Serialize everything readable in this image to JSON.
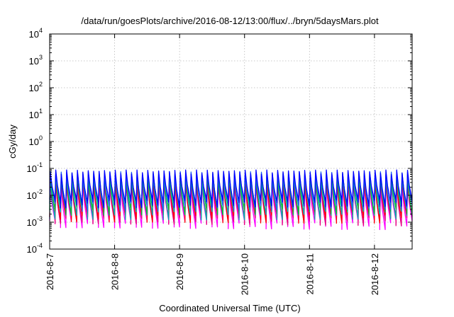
{
  "chart_data": {
    "type": "line",
    "title": "/data/run/goesPlots/archive/2016-08-12/13:00/flux/../bryn/5daysMars.plot",
    "xlabel": "Coordinated Universal Time (UTC)",
    "ylabel": "cGy/day",
    "yscale": "log",
    "ylim": [
      0.0001,
      10000
    ],
    "y_ticks": [
      {
        "base": "10",
        "exp": "-4",
        "value": 0.0001
      },
      {
        "base": "10",
        "exp": "-3",
        "value": 0.001
      },
      {
        "base": "10",
        "exp": "-2",
        "value": 0.01
      },
      {
        "base": "10",
        "exp": "-1",
        "value": 0.1
      },
      {
        "base": "10",
        "exp": "0",
        "value": 1
      },
      {
        "base": "10",
        "exp": "1",
        "value": 10
      },
      {
        "base": "10",
        "exp": "2",
        "value": 100
      },
      {
        "base": "10",
        "exp": "3",
        "value": 1000
      },
      {
        "base": "10",
        "exp": "4",
        "value": 10000
      }
    ],
    "x_ticks": [
      {
        "label": "2016-8-7",
        "day": 0
      },
      {
        "label": "2016-8-8",
        "day": 1
      },
      {
        "label": "2016-8-9",
        "day": 2
      },
      {
        "label": "2016-8-10",
        "day": 3
      },
      {
        "label": "2016-8-11",
        "day": 4
      },
      {
        "label": "2016-8-12",
        "day": 5
      }
    ],
    "x_range_days": [
      0,
      5.58
    ],
    "grid": true,
    "pattern": {
      "cycle_days": 0.0833,
      "series_peak_trough": [
        {
          "color": "#ff00ff",
          "peak": 0.025,
          "trough": 0.0008
        },
        {
          "color": "#e6007e",
          "peak": 0.03,
          "trough": 0.0012
        },
        {
          "color": "#ff0000",
          "peak": 0.04,
          "trough": 0.0015
        },
        {
          "color": "#00b0b0",
          "peak": 0.05,
          "trough": 0.002
        },
        {
          "color": "#00c040",
          "peak": 0.06,
          "trough": 0.003
        },
        {
          "color": "#1e64ff",
          "peak": 0.07,
          "trough": 0.004
        },
        {
          "color": "#0000ff",
          "peak": 0.08,
          "trough": 0.005
        }
      ]
    }
  }
}
